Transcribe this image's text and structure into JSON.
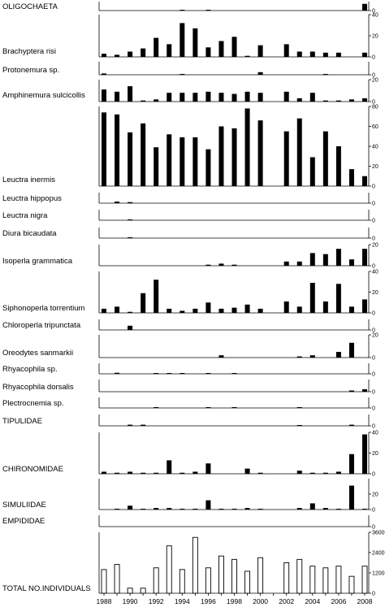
{
  "chart_data": {
    "type": "bar",
    "years": [
      1988,
      1989,
      1990,
      1991,
      1992,
      1993,
      1994,
      1995,
      1996,
      1997,
      1998,
      1999,
      2000,
      2001,
      2002,
      2003,
      2004,
      2005,
      2006,
      2007,
      2008
    ],
    "x_tick_labels": [
      "1988",
      "1990",
      "1992",
      "1994",
      "1996",
      "1998",
      "2000",
      "2002",
      "2004",
      "2006",
      "2008"
    ],
    "panels": [
      {
        "name": "OLIGOCHAETA",
        "ymax": 4,
        "ticks": [],
        "tick_labels": [
          "0"
        ],
        "values": [
          0,
          0,
          0,
          0,
          0,
          0,
          0.3,
          0,
          0.3,
          0,
          0,
          0,
          0,
          null,
          0,
          0,
          0,
          0,
          0,
          0,
          3
        ]
      },
      {
        "name": "Brachyptera risi",
        "ymax": 40,
        "ticks": [
          0,
          20,
          40
        ],
        "tick_labels": [
          "0",
          "20",
          "40"
        ],
        "values": [
          3,
          2,
          5,
          8,
          18,
          12,
          32,
          27,
          9,
          15,
          19,
          1,
          11,
          null,
          12,
          5,
          5,
          4,
          4,
          0,
          4
        ]
      },
      {
        "name": "Protonemura sp.",
        "ymax": 10,
        "ticks": [],
        "tick_labels": [
          "0"
        ],
        "values": [
          1,
          0,
          0,
          0,
          0,
          0,
          0.5,
          0,
          0,
          0,
          0,
          0,
          2,
          null,
          0,
          0,
          0,
          0.5,
          0,
          0,
          0
        ]
      },
      {
        "name": "Amphinemura sulcicollis",
        "ymax": 20,
        "ticks": [
          0,
          20
        ],
        "tick_labels": [
          "0",
          "20"
        ],
        "values": [
          11,
          9,
          14,
          1,
          2,
          8,
          8,
          8,
          9,
          8,
          7,
          9,
          8,
          null,
          9,
          3,
          8,
          1,
          1,
          2,
          3
        ]
      },
      {
        "name": "Leuctra inermis",
        "ymax": 80,
        "ticks": [
          0,
          20,
          40,
          60,
          80
        ],
        "tick_labels": [
          "0",
          "20",
          "40",
          "60",
          "80"
        ],
        "values": [
          74,
          72,
          54,
          63,
          39,
          52,
          49,
          49,
          37,
          60,
          58,
          78,
          66,
          null,
          55,
          68,
          29,
          55,
          40,
          17,
          10
        ]
      },
      {
        "name": "Leuctra hippopus",
        "ymax": 10,
        "ticks": [],
        "tick_labels": [
          "0"
        ],
        "values": [
          0,
          1.5,
          1,
          0,
          0,
          0,
          0,
          0,
          0,
          0,
          0,
          0,
          0,
          null,
          0,
          0,
          0,
          0,
          0,
          0,
          0
        ]
      },
      {
        "name": "Leuctra nigra",
        "ymax": 10,
        "ticks": [],
        "tick_labels": [
          "0"
        ],
        "values": [
          0,
          0,
          0.5,
          0,
          0,
          0,
          0,
          0,
          0,
          0,
          0,
          0,
          0,
          null,
          0,
          0,
          0,
          0,
          0,
          0,
          0
        ]
      },
      {
        "name": "Diura bicaudata",
        "ymax": 10,
        "ticks": [],
        "tick_labels": [
          "0"
        ],
        "values": [
          0,
          0,
          0.5,
          0,
          0,
          0,
          0,
          0,
          0,
          0,
          0,
          0,
          0,
          null,
          0,
          0,
          0,
          0,
          0,
          0,
          0
        ]
      },
      {
        "name": "Isoperla grammatica",
        "ymax": 20,
        "ticks": [
          0,
          20
        ],
        "tick_labels": [
          "0",
          "20"
        ],
        "values": [
          0,
          0,
          0,
          0,
          0,
          0,
          0,
          0,
          1,
          2,
          1,
          0,
          0,
          null,
          4,
          4,
          12,
          11,
          16,
          6,
          16
        ]
      },
      {
        "name": "Siphonoperla torrentium",
        "ymax": 40,
        "ticks": [
          0,
          20,
          40
        ],
        "tick_labels": [
          "0",
          "20",
          "40"
        ],
        "values": [
          4,
          6,
          1,
          19,
          32,
          4,
          2,
          4,
          10,
          4,
          5,
          8,
          4,
          null,
          11,
          6,
          29,
          11,
          28,
          6,
          13
        ]
      },
      {
        "name": "Chloroperla tripunctata",
        "ymax": 10,
        "ticks": [],
        "tick_labels": [
          "0"
        ],
        "values": [
          0,
          0,
          4,
          0,
          0,
          0,
          0,
          0,
          0,
          0,
          0,
          0,
          0,
          null,
          0,
          0,
          0,
          0,
          0,
          0,
          0
        ]
      },
      {
        "name": "Oreodytes sanmarkii",
        "ymax": 20,
        "ticks": [
          0,
          20
        ],
        "tick_labels": [
          "0",
          "20"
        ],
        "values": [
          0,
          0,
          0,
          0,
          0,
          0,
          0,
          0,
          0,
          2,
          0,
          0,
          0,
          null,
          0,
          1,
          2,
          0,
          5,
          13,
          0
        ]
      },
      {
        "name": "Rhyacophila sp.",
        "ymax": 10,
        "ticks": [],
        "tick_labels": [
          "0"
        ],
        "values": [
          0,
          1,
          0,
          0,
          0.5,
          0.5,
          0.5,
          0,
          0.5,
          0,
          0.5,
          0,
          0,
          null,
          0,
          0,
          0,
          0,
          0,
          0,
          0
        ]
      },
      {
        "name": "Rhyacophila dorsalis",
        "ymax": 10,
        "ticks": [],
        "tick_labels": [
          "0"
        ],
        "values": [
          0,
          0,
          0,
          0,
          0,
          0,
          0,
          0,
          0,
          0,
          0,
          0,
          0,
          null,
          0,
          0,
          0,
          0,
          0,
          1,
          2
        ]
      },
      {
        "name": "Plectrocnemia sp.",
        "ymax": 10,
        "ticks": [],
        "tick_labels": [
          "0"
        ],
        "values": [
          0,
          0,
          0,
          0,
          0.5,
          0,
          0,
          0,
          0.5,
          0,
          0.5,
          0,
          0,
          null,
          0,
          0.5,
          0,
          0,
          0,
          0,
          0
        ]
      },
      {
        "name": "TIPULIDAE",
        "ymax": 10,
        "ticks": [],
        "tick_labels": [
          "0"
        ],
        "values": [
          0,
          0,
          1,
          1,
          0,
          0,
          0,
          0,
          0,
          0,
          0,
          0,
          0,
          null,
          0,
          0.5,
          0,
          0,
          0,
          1,
          0
        ]
      },
      {
        "name": "CHIRONOMIDAE",
        "ymax": 40,
        "ticks": [
          0,
          20,
          40
        ],
        "tick_labels": [
          "0",
          "20",
          "40"
        ],
        "values": [
          2,
          1,
          2,
          1,
          1,
          13,
          1,
          2,
          10,
          0,
          0,
          5,
          1,
          null,
          0,
          3,
          1,
          1,
          2,
          19,
          38
        ]
      },
      {
        "name": "SIMULIIDAE",
        "ymax": 40,
        "ticks": [
          0,
          20
        ],
        "tick_labels": [
          "0",
          "20"
        ],
        "values": [
          0,
          1,
          5,
          1,
          2,
          2,
          1,
          1,
          12,
          1,
          1,
          2,
          1,
          null,
          0,
          2,
          8,
          2,
          1,
          31,
          1
        ]
      },
      {
        "name": "EMPIDIDAE",
        "ymax": 10,
        "ticks": [],
        "tick_labels": [
          "0"
        ],
        "values": [
          0,
          0,
          0,
          0,
          0,
          0,
          0,
          0,
          0,
          0,
          0,
          0,
          0,
          null,
          0,
          0,
          0,
          0,
          0,
          0,
          0
        ]
      },
      {
        "name": "TOTAL NO.INDIVIDUALS",
        "ymax": 3600,
        "ticks": [
          0,
          1200,
          2400,
          3600
        ],
        "tick_labels": [
          "0",
          "1200",
          "2400",
          "3600"
        ],
        "hollow": true,
        "values": [
          1400,
          1700,
          300,
          300,
          1500,
          2800,
          1400,
          3300,
          1500,
          2200,
          2000,
          1300,
          2100,
          null,
          1800,
          2000,
          1600,
          1500,
          1600,
          1000,
          1600
        ]
      }
    ]
  }
}
